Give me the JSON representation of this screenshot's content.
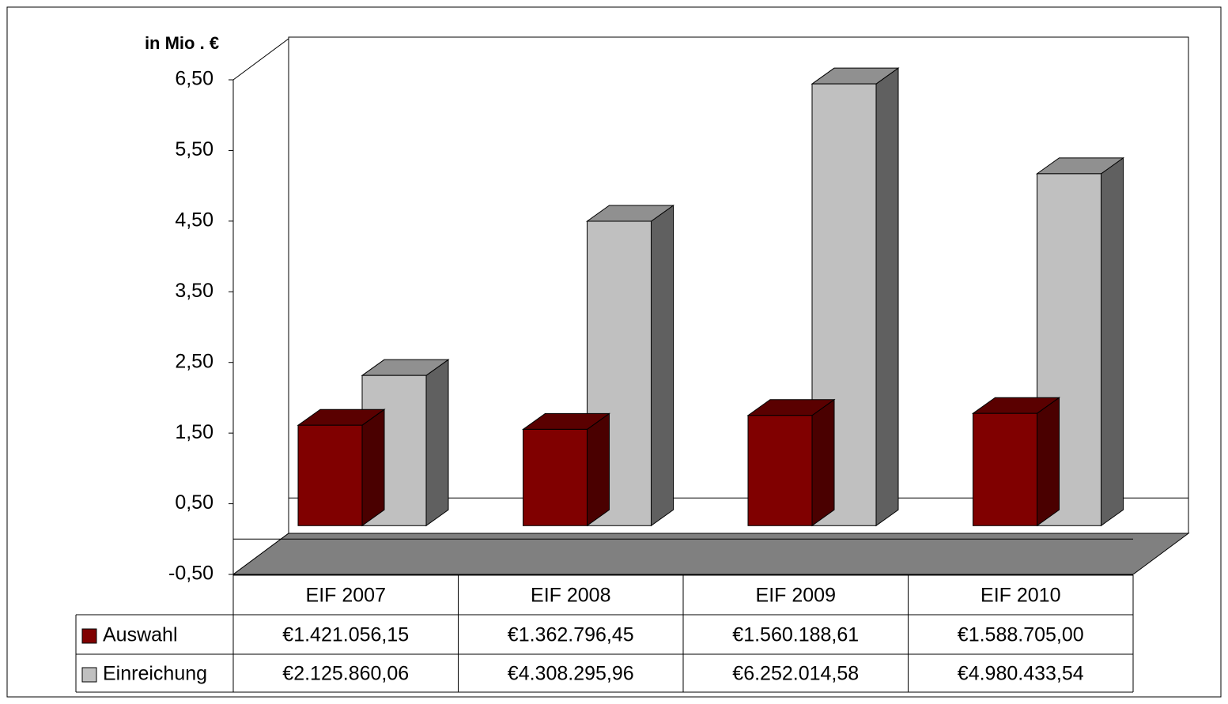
{
  "chart_data": {
    "type": "bar3d",
    "y_label": "in Mio . €",
    "categories": [
      "EIF 2007",
      "EIF 2008",
      "EIF 2009",
      "EIF 2010"
    ],
    "series": [
      {
        "name": "Auswahl",
        "color": "#800000",
        "values": [
          1.42105615,
          1.36279645,
          1.56018861,
          1.588705
        ],
        "value_labels": [
          "€1.421.056,15",
          "€1.362.796,45",
          "€1.560.188,61",
          "€1.588.705,00"
        ]
      },
      {
        "name": "Einreichung",
        "color": "#c0c0c0",
        "values": [
          2.12586006,
          4.30829596,
          6.25201458,
          4.98043354
        ],
        "value_labels": [
          "€2.125.860,06",
          "€4.308.295,96",
          "€6.252.014,58",
          "€4.980.433,54"
        ]
      }
    ],
    "ylim": [
      -0.5,
      6.5
    ],
    "yticks": [
      {
        "value": -0.5,
        "label": "-0,50"
      },
      {
        "value": 0.5,
        "label": "0,50"
      },
      {
        "value": 1.5,
        "label": "1,50"
      },
      {
        "value": 2.5,
        "label": "2,50"
      },
      {
        "value": 3.5,
        "label": "3,50"
      },
      {
        "value": 4.5,
        "label": "4,50"
      },
      {
        "value": 5.5,
        "label": "5,50"
      },
      {
        "value": 6.5,
        "label": "6,50"
      }
    ]
  }
}
